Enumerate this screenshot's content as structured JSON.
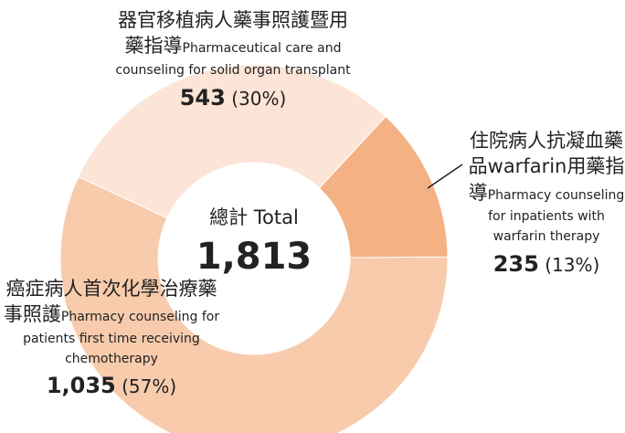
{
  "chart_data": {
    "type": "pie",
    "categories_zh": [
      "器官移植病人藥事照護暨用藥指導",
      "住院病人抗凝血藥品warfarin用藥指導",
      "癌症病人首次化學治療藥事照護"
    ],
    "categories_en": [
      "Pharmaceutical care and counseling for solid organ transplant",
      "Pharmacy counseling for inpatients with warfarin therapy",
      "Pharmacy counseling for patients  first time receiving chemotherapy"
    ],
    "values": [
      543,
      235,
      1035
    ],
    "value_labels": [
      "543",
      "235",
      "1,035"
    ],
    "percents": [
      30,
      13,
      57
    ],
    "percent_labels": [
      "(30%)",
      "(13%)",
      "(57%)"
    ],
    "colors": [
      "#fce4d6",
      "#f4b183",
      "#f8cbad"
    ],
    "total": {
      "label": "總計 Total",
      "value": 1813,
      "value_label": "1,813"
    }
  }
}
